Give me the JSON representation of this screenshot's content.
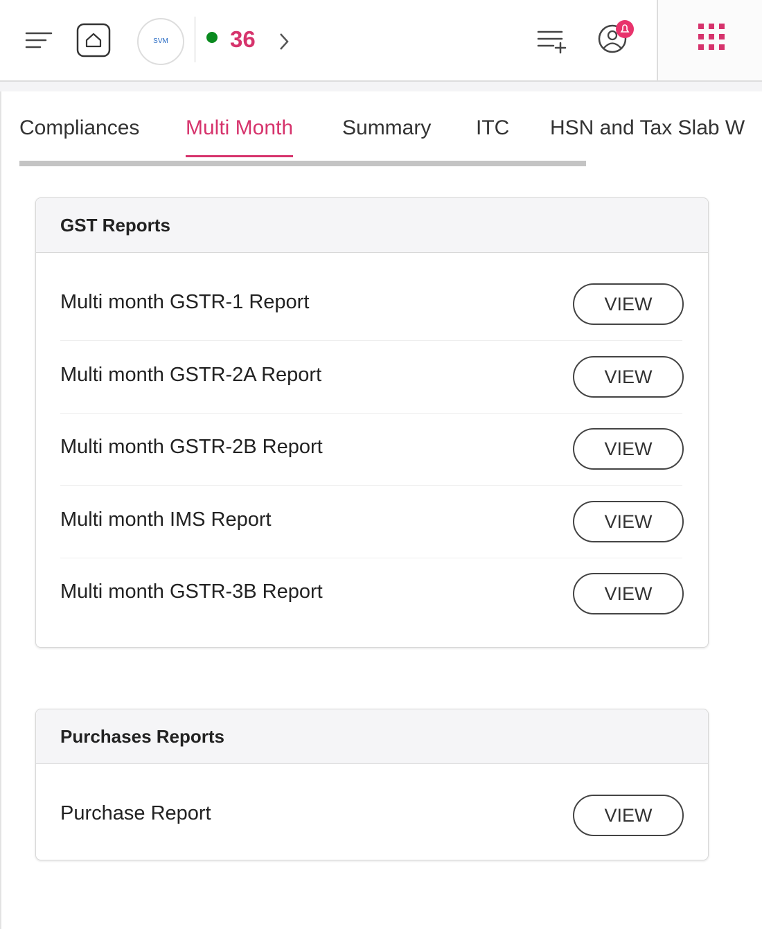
{
  "header": {
    "logo_text": "SVM",
    "count": "36"
  },
  "tabs": {
    "items": [
      "Compliances",
      "Multi Month",
      "Summary",
      "ITC",
      "HSN and Tax Slab W"
    ],
    "active": 1
  },
  "sections": [
    {
      "title": "GST Reports",
      "rows": [
        {
          "label": "Multi month GSTR-1 Report",
          "button": "VIEW"
        },
        {
          "label": "Multi month GSTR-2A Report",
          "button": "VIEW"
        },
        {
          "label": "Multi month GSTR-2B Report",
          "button": "VIEW"
        },
        {
          "label": "Multi month IMS Report",
          "button": "VIEW"
        },
        {
          "label": "Multi month GSTR-3B Report",
          "button": "VIEW"
        }
      ]
    },
    {
      "title": "Purchases Reports",
      "rows": [
        {
          "label": "Purchase Report",
          "button": "VIEW"
        }
      ]
    }
  ]
}
